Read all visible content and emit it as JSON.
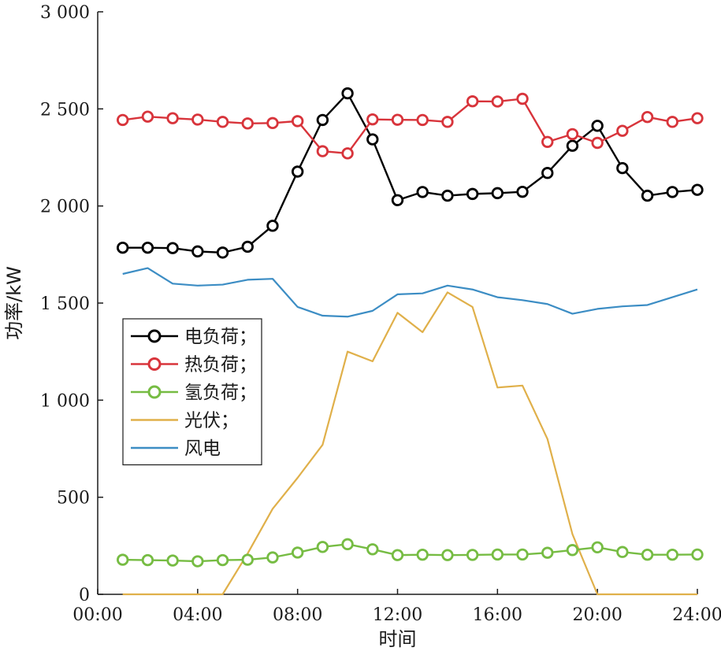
{
  "chart_data": {
    "type": "line",
    "xlabel": "时间",
    "ylabel": "功率/kW",
    "xlim": [
      0,
      24
    ],
    "ylim": [
      0,
      3000
    ],
    "x_ticks": [
      0,
      4,
      8,
      12,
      16,
      20,
      24
    ],
    "x_tick_labels": [
      "00:00",
      "04:00",
      "08:00",
      "12:00",
      "16:00",
      "20:00",
      "24:00"
    ],
    "y_ticks": [
      0,
      500,
      1000,
      1500,
      2000,
      2500,
      3000
    ],
    "y_tick_labels": [
      "0",
      "500",
      "1 000",
      "1 500",
      "2 000",
      "2 500",
      "3 000"
    ],
    "grid": false,
    "legend_position": "middle-left",
    "x": [
      1,
      2,
      3,
      4,
      5,
      6,
      7,
      8,
      9,
      10,
      11,
      12,
      13,
      14,
      15,
      16,
      17,
      18,
      19,
      20,
      21,
      22,
      23,
      24
    ],
    "series": [
      {
        "name": "电负荷；",
        "color": "#000000",
        "marker": "circle",
        "values": [
          1785,
          1785,
          1783,
          1766,
          1760,
          1790,
          1898,
          2177,
          2443,
          2580,
          2343,
          2030,
          2072,
          2053,
          2062,
          2066,
          2073,
          2170,
          2310,
          2413,
          2195,
          2053,
          2072,
          2083
        ]
      },
      {
        "name": "热负荷；",
        "color": "#d8343b",
        "marker": "circle",
        "values": [
          2443,
          2460,
          2452,
          2445,
          2433,
          2425,
          2427,
          2437,
          2282,
          2271,
          2446,
          2444,
          2443,
          2433,
          2539,
          2538,
          2552,
          2330,
          2370,
          2325,
          2387,
          2458,
          2433,
          2452
        ]
      },
      {
        "name": "氢负荷；",
        "color": "#76bc43",
        "marker": "circle",
        "values": [
          178,
          176,
          174,
          170,
          176,
          178,
          190,
          215,
          244,
          258,
          232,
          202,
          204,
          202,
          203,
          205,
          205,
          214,
          228,
          242,
          218,
          204,
          204,
          205
        ]
      },
      {
        "name": "光伏；",
        "color": "#e0b04a",
        "marker": "none",
        "values": [
          0,
          0,
          0,
          0,
          0,
          210,
          440,
          600,
          770,
          1250,
          1200,
          1450,
          1350,
          1555,
          1480,
          1065,
          1075,
          800,
          310,
          0,
          0,
          0,
          0,
          0
        ]
      },
      {
        "name": "风电",
        "color": "#3c8dc4",
        "marker": "none",
        "values": [
          1650,
          1680,
          1600,
          1590,
          1595,
          1620,
          1625,
          1480,
          1435,
          1430,
          1460,
          1545,
          1550,
          1590,
          1570,
          1530,
          1515,
          1495,
          1445,
          1470,
          1483,
          1490,
          1530,
          1570
        ]
      }
    ]
  }
}
